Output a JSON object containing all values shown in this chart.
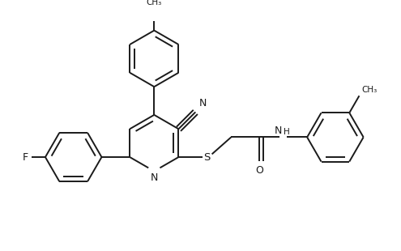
{
  "background_color": "#ffffff",
  "line_color": "#1a1a1a",
  "line_width": 1.4,
  "figsize": [
    4.95,
    3.1
  ],
  "dpi": 100,
  "xlim": [
    0,
    4.95
  ],
  "ylim": [
    0,
    3.1
  ]
}
